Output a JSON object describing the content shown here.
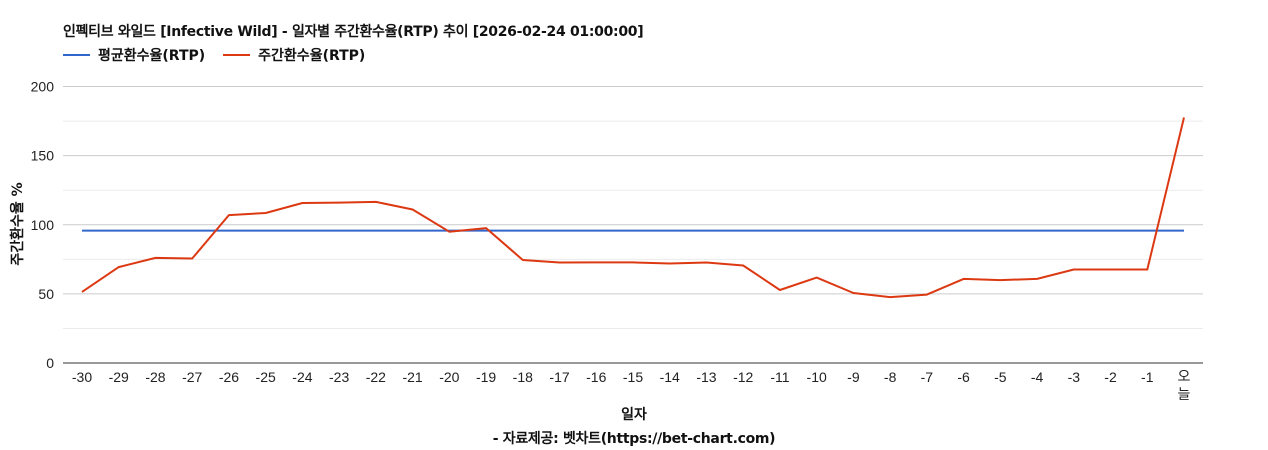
{
  "header": {
    "title": "인펙티브 와일드 [Infective Wild] - 일자별 주간환수율(RTP) 추이 [2026-02-24 01:00:00]"
  },
  "legend": [
    {
      "label": "평균환수율(RTP)",
      "color": "#3366cc"
    },
    {
      "label": "주간환수율(RTP)",
      "color": "#dc3912"
    }
  ],
  "axes": {
    "xlabel": "일자",
    "ylabel": "주간환수율 %"
  },
  "footer": {
    "credit": "- 자료제공: 벳차트(https://bet-chart.com)"
  },
  "colors": {
    "avg": "#3366cc",
    "weekly": "#dc3912",
    "grid_major": "#cccccc",
    "grid_minor": "#ebebeb",
    "axis": "#333333"
  },
  "chart_data": {
    "type": "line",
    "title": "인펙티브 와일드 [Infective Wild] - 일자별 주간환수율(RTP) 추이 [2026-02-24 01:00:00]",
    "xlabel": "일자",
    "ylabel": "주간환수율 %",
    "ylim": [
      0,
      200
    ],
    "yticks": [
      0,
      50,
      100,
      150,
      200
    ],
    "grid": true,
    "legend_position": "top",
    "categories": [
      "-30",
      "-29",
      "-28",
      "-27",
      "-26",
      "-25",
      "-24",
      "-23",
      "-22",
      "-21",
      "-20",
      "-19",
      "-18",
      "-17",
      "-16",
      "-15",
      "-14",
      "-13",
      "-12",
      "-11",
      "-10",
      "-9",
      "-8",
      "-7",
      "-6",
      "-5",
      "-4",
      "-3",
      "-2",
      "-1",
      "오늘"
    ],
    "series": [
      {
        "name": "평균환수율(RTP)",
        "color": "#3366cc",
        "values": [
          95.8,
          95.8,
          95.8,
          95.8,
          95.8,
          95.8,
          95.8,
          95.8,
          95.8,
          95.8,
          95.8,
          95.8,
          95.8,
          95.8,
          95.8,
          95.8,
          95.8,
          95.8,
          95.8,
          95.8,
          95.8,
          95.8,
          95.8,
          95.8,
          95.8,
          95.8,
          95.8,
          95.8,
          95.8,
          95.8,
          95.8
        ]
      },
      {
        "name": "주간환수율(RTP)",
        "color": "#dc3912",
        "values": [
          51.4,
          69.4,
          76.0,
          75.6,
          107.0,
          108.5,
          115.7,
          116.0,
          116.5,
          111.0,
          95.0,
          97.6,
          74.5,
          72.7,
          72.8,
          72.8,
          72.0,
          72.7,
          70.5,
          52.8,
          61.8,
          50.6,
          47.7,
          49.5,
          60.8,
          60.0,
          60.8,
          67.6,
          67.6,
          67.6,
          177.6
        ]
      }
    ]
  }
}
